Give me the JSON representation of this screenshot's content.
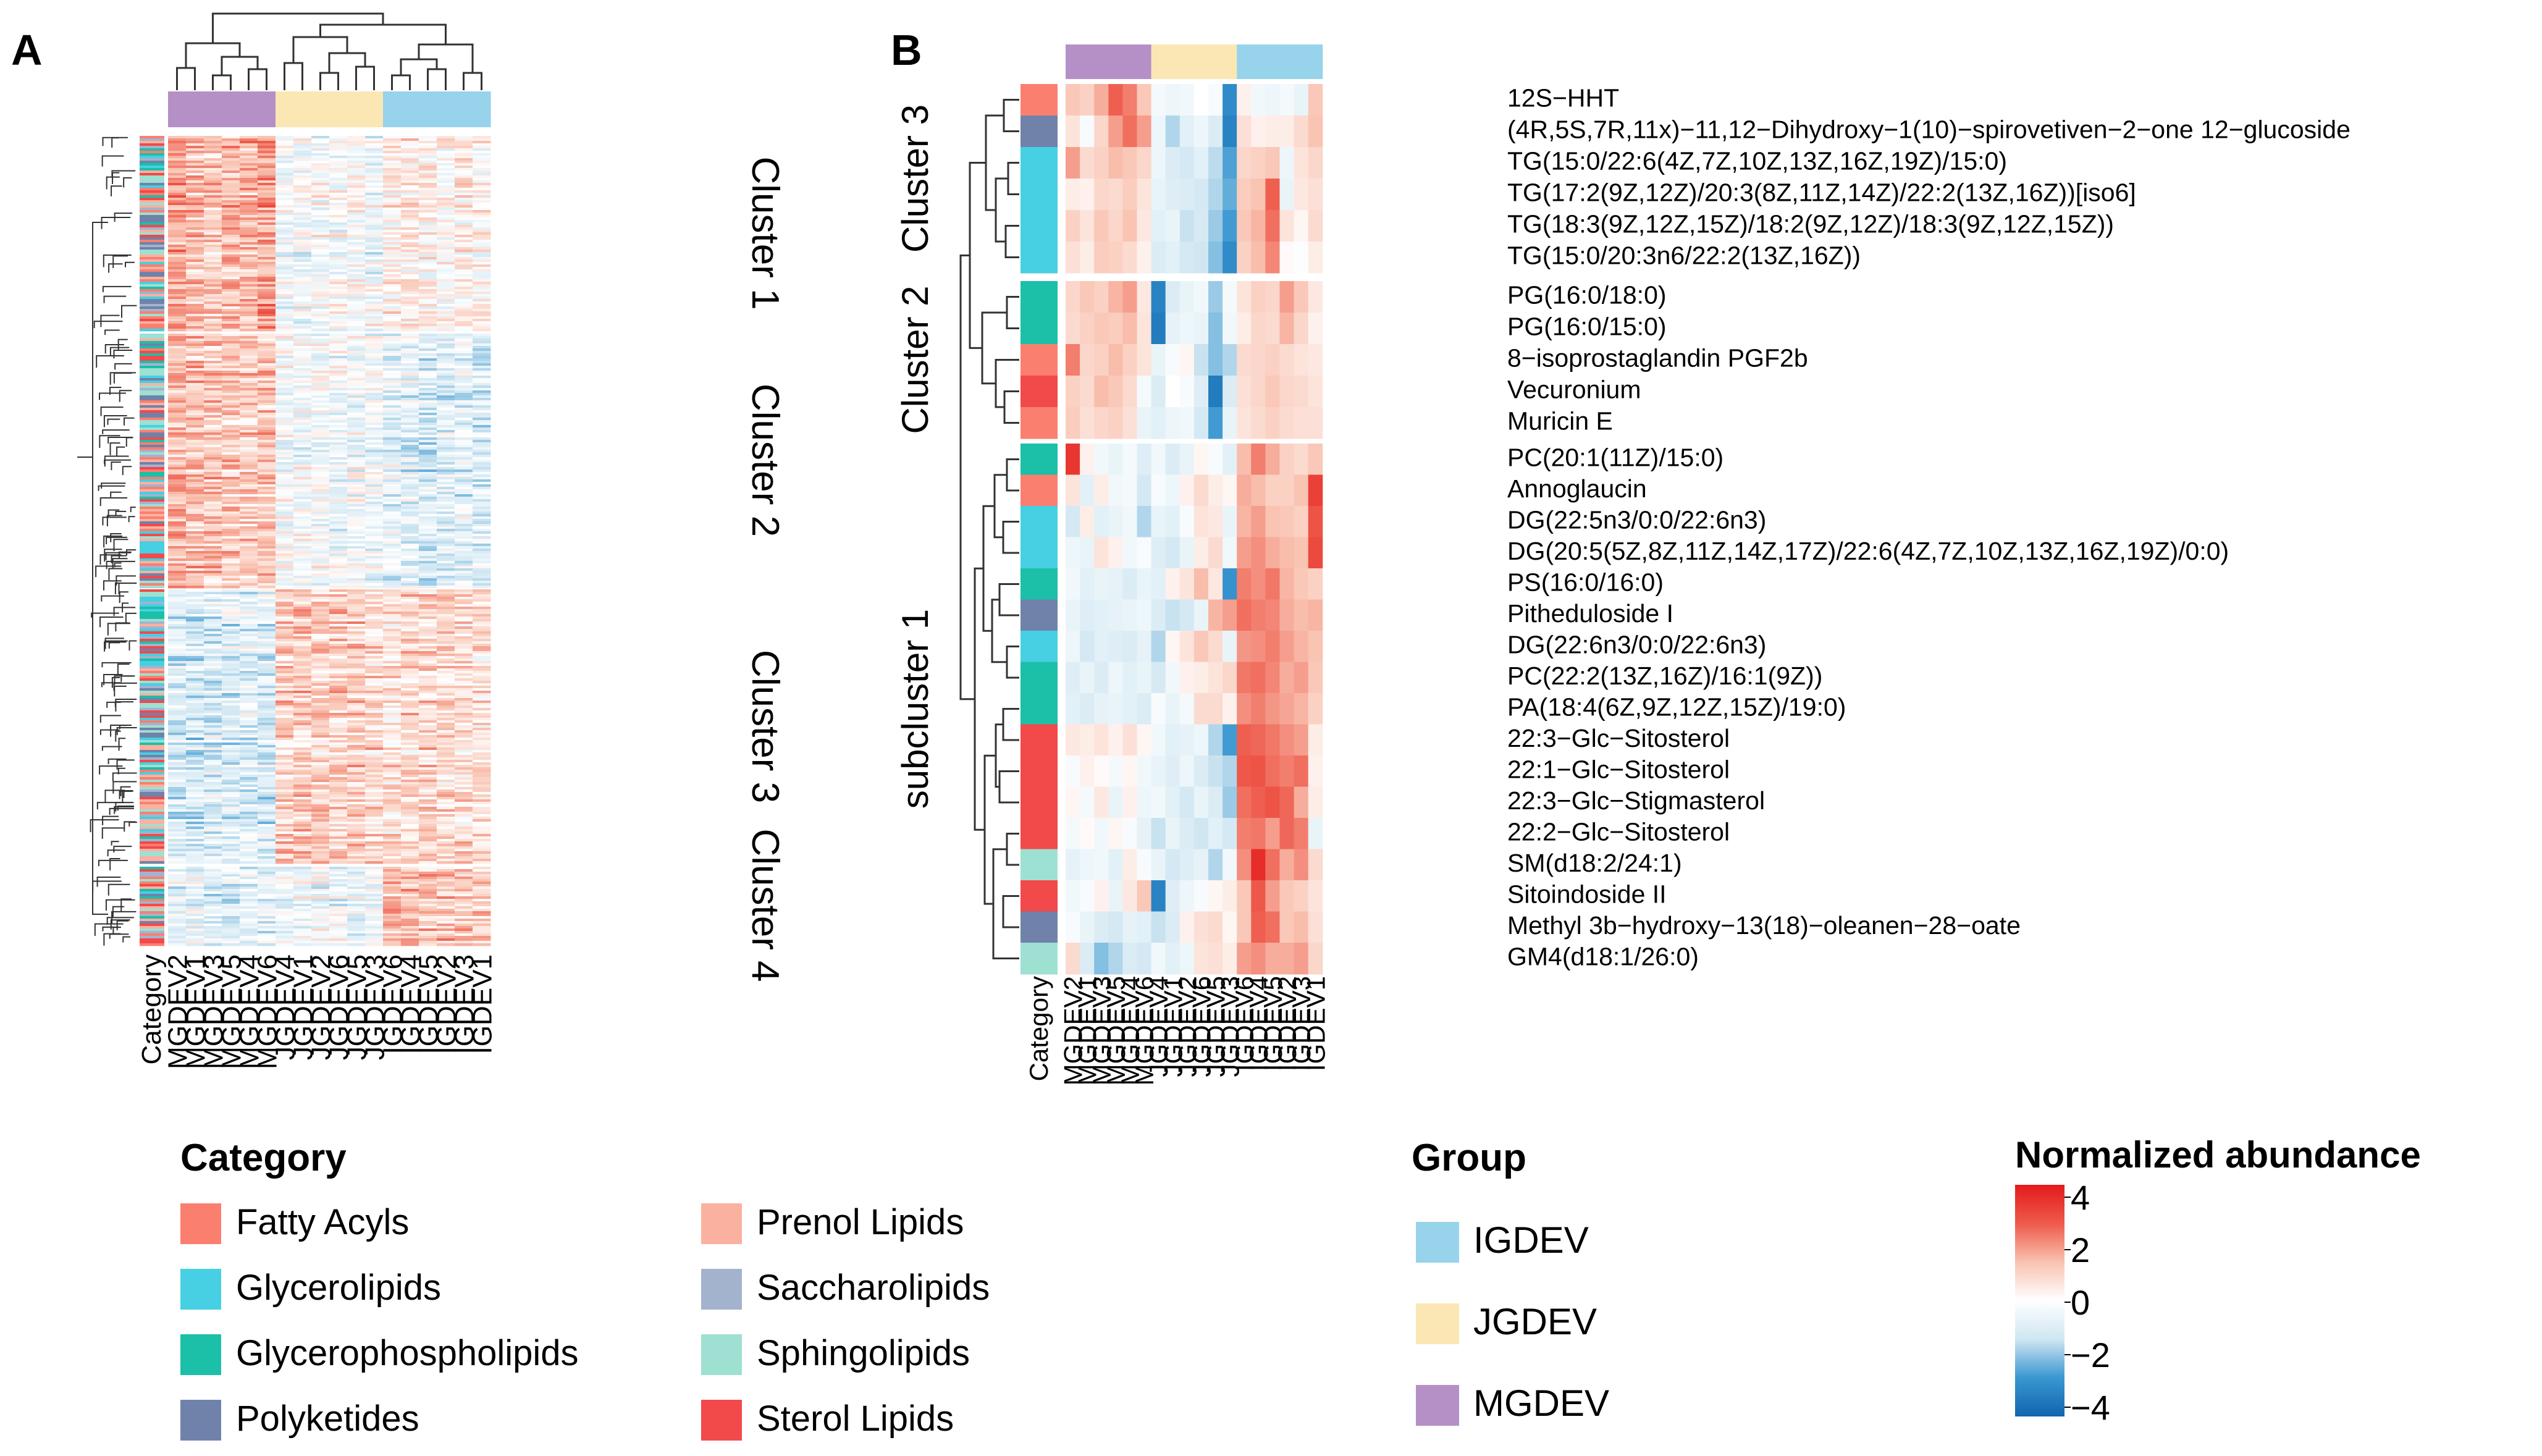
{
  "figure": {
    "panel_a_label": "A",
    "panel_b_label": "B"
  },
  "colors": {
    "groups": {
      "MGDEV": "#b590c6",
      "JGDEV": "#fbe7b3",
      "IGDEV": "#97d3ea"
    },
    "categories": {
      "Fatty Acyls": "#fa7f6f",
      "Glycerolipids": "#47cfe3",
      "Glycerophospholipids": "#1cbfa8",
      "Polyketides": "#7082aa",
      "Prenol Lipids": "#fbb19f",
      "Saccharolipids": "#a3b3cd",
      "Sphingolipids": "#9ee0d2",
      "Sterol Lipids": "#f2494a"
    },
    "scale": [
      "#1065b0",
      "#3a97d0",
      "#cfe6f2",
      "#ffffff",
      "#f9c2b0",
      "#ee5a4b",
      "#e31a1c"
    ]
  },
  "chart_data": [
    {
      "id": "panel-a",
      "type": "heatmap",
      "title": "",
      "samples": [
        "Category",
        "MGDEV2",
        "MGDEV1",
        "MGDEV3",
        "MGDEV5",
        "MGDEV4",
        "MGDEV6",
        "JGDEV4",
        "JGDEV1",
        "JGDEV2",
        "JGDEV6",
        "JGDEV5",
        "JGDEV3",
        "IGDEV6",
        "IGDEV4",
        "IGDEV5",
        "IGDEV2",
        "IGDEV3",
        "IGDEV1"
      ],
      "column_groups": [
        "MGDEV",
        "MGDEV",
        "MGDEV",
        "MGDEV",
        "MGDEV",
        "MGDEV",
        "JGDEV",
        "JGDEV",
        "JGDEV",
        "JGDEV",
        "JGDEV",
        "JGDEV",
        "IGDEV",
        "IGDEV",
        "IGDEV",
        "IGDEV",
        "IGDEV",
        "IGDEV"
      ],
      "clusters": [
        {
          "label": "Cluster 1",
          "pattern": [
            1.6,
            1.3,
            1.0,
            1.4,
            1.4,
            1.7,
            -0.3,
            -0.3,
            -0.2,
            -0.2,
            -0.1,
            -0.3,
            0.2,
            0.3,
            0.3,
            0.2,
            0.3,
            0.2
          ]
        },
        {
          "label": "Cluster 2",
          "pattern": [
            1.4,
            1.2,
            1.1,
            1.1,
            1.0,
            1.1,
            -0.2,
            -0.3,
            -0.3,
            -0.4,
            -0.3,
            -0.4,
            -0.6,
            -0.7,
            -0.9,
            -0.8,
            -0.7,
            -1.0
          ]
        },
        {
          "label": "Cluster 3",
          "pattern": [
            -0.9,
            -1.1,
            -0.9,
            -0.9,
            -0.8,
            -0.9,
            0.9,
            1.0,
            0.9,
            0.9,
            1.0,
            0.8,
            0.6,
            0.8,
            0.8,
            0.7,
            0.7,
            0.6
          ]
        },
        {
          "label": "Cluster 4",
          "pattern": [
            -0.6,
            -0.5,
            -0.7,
            -0.8,
            -0.7,
            -0.6,
            -0.3,
            -0.4,
            -0.3,
            -0.5,
            -0.6,
            -0.4,
            1.3,
            1.3,
            1.2,
            1.2,
            1.1,
            1.0
          ]
        }
      ],
      "scale_range": [
        -4,
        4
      ]
    },
    {
      "id": "panel-b",
      "type": "heatmap",
      "title": "",
      "samples": [
        "Category",
        "MGDEV2",
        "MGDEV1",
        "MGDEV3",
        "MGDEV5",
        "MGDEV4",
        "MGDEV6",
        "JGDEV4",
        "JGDEV1",
        "JGDEV2",
        "JGDEV6",
        "JGDEV5",
        "JGDEV3",
        "IGDEV6",
        "IGDEV4",
        "IGDEV5",
        "IGDEV2",
        "IGDEV3",
        "IGDEV1"
      ],
      "column_groups": [
        "MGDEV",
        "MGDEV",
        "MGDEV",
        "MGDEV",
        "MGDEV",
        "MGDEV",
        "JGDEV",
        "JGDEV",
        "JGDEV",
        "JGDEV",
        "JGDEV",
        "JGDEV",
        "IGDEV",
        "IGDEV",
        "IGDEV",
        "IGDEV",
        "IGDEV",
        "IGDEV"
      ],
      "row_groups": [
        {
          "label": "Cluster 3",
          "rows": [
            0,
            5
          ]
        },
        {
          "label": "Cluster 2",
          "rows": [
            6,
            10
          ]
        },
        {
          "label": "subcluster 1",
          "rows": [
            11,
            27
          ]
        }
      ],
      "rows": [
        {
          "name": "12S−HHT",
          "category": "Fatty Acyls",
          "values": [
            1.2,
            1.0,
            1.6,
            2.6,
            2.2,
            1.2,
            -0.3,
            -0.5,
            -0.4,
            0.0,
            -0.2,
            -3.0,
            0.3,
            -0.4,
            -0.5,
            -0.3,
            -0.6,
            1.2
          ]
        },
        {
          "name": "(4R,5S,7R,11x)−11,12−Dihydroxy−1(10)−spirovetiven−2−one 12−glucoside",
          "category": "Polyketides",
          "values": [
            0.6,
            -0.2,
            0.9,
            1.8,
            2.4,
            1.8,
            -0.5,
            -1.6,
            -0.8,
            -0.5,
            -1.0,
            -3.2,
            0.7,
            0.3,
            0.4,
            0.4,
            0.8,
            1.3
          ]
        },
        {
          "name": "TG(15:0/22:6(4Z,7Z,10Z,13Z,16Z,19Z)/15:0)",
          "category": "Glycerolipids",
          "values": [
            1.8,
            0.8,
            1.0,
            1.4,
            1.2,
            0.9,
            -0.5,
            -1.0,
            -1.2,
            -0.8,
            -1.5,
            -2.5,
            0.9,
            1.0,
            1.2,
            -0.5,
            0.6,
            0.9
          ]
        },
        {
          "name": "TG(17:2(9Z,12Z)/20:3(8Z,11Z,14Z)/22:2(13Z,16Z))[iso6]",
          "category": "Glycerolipids",
          "values": [
            0.4,
            0.3,
            0.9,
            0.8,
            1.1,
            0.6,
            -0.6,
            -0.9,
            -1.0,
            -1.2,
            -1.6,
            -2.3,
            1.1,
            1.3,
            2.6,
            -0.6,
            0.5,
            0.7
          ]
        },
        {
          "name": "TG(18:3(9Z,12Z,15Z)/18:2(9Z,12Z)/18:3(9Z,12Z,15Z))",
          "category": "Glycerolipids",
          "values": [
            1.0,
            0.6,
            1.2,
            0.9,
            1.3,
            0.5,
            -0.8,
            -0.6,
            -1.4,
            -1.1,
            -1.8,
            -2.6,
            1.2,
            1.5,
            2.4,
            0.6,
            0.2,
            0.8
          ]
        },
        {
          "name": "TG(15:0/20:3n6/22:2(13Z,16Z))",
          "category": "Glycerolipids",
          "values": [
            0.7,
            0.4,
            1.1,
            1.0,
            0.8,
            0.3,
            -1.0,
            -0.8,
            -1.2,
            -1.3,
            -2.0,
            -3.0,
            1.0,
            1.4,
            2.1,
            0.1,
            -0.1,
            0.4
          ]
        },
        {
          "name": "PG(16:0/18:0)",
          "category": "Glycerophospholipids",
          "values": [
            0.9,
            1.2,
            1.0,
            1.5,
            1.8,
            0.5,
            -3.2,
            -1.0,
            -0.6,
            -0.4,
            -1.8,
            -0.3,
            0.6,
            1.0,
            0.9,
            1.8,
            1.2,
            0.5
          ]
        },
        {
          "name": "PG(16:0/15:0)",
          "category": "Glycerophospholipids",
          "values": [
            0.8,
            1.0,
            1.2,
            1.1,
            1.4,
            0.6,
            -3.4,
            -0.7,
            -0.5,
            -0.6,
            -2.0,
            -0.4,
            0.4,
            0.9,
            0.8,
            1.5,
            0.9,
            0.3
          ]
        },
        {
          "name": "8−isoprostaglandin PGF2b",
          "category": "Fatty Acyls",
          "values": [
            2.2,
            0.9,
            1.0,
            1.4,
            1.0,
            0.6,
            -0.6,
            -0.2,
            0.2,
            -1.4,
            -2.0,
            -1.6,
            0.8,
            0.9,
            1.0,
            0.8,
            0.6,
            0.5
          ]
        },
        {
          "name": "Vecuronium",
          "category": "Sterol Lipids",
          "values": [
            1.0,
            0.8,
            1.4,
            1.2,
            0.8,
            -0.3,
            -1.0,
            0.0,
            -0.2,
            -0.9,
            -3.4,
            -1.0,
            0.7,
            0.9,
            1.2,
            0.9,
            0.8,
            0.6
          ]
        },
        {
          "name": "Muricin E",
          "category": "Fatty Acyls",
          "values": [
            1.1,
            0.7,
            0.9,
            1.0,
            0.7,
            -0.6,
            -0.8,
            -0.5,
            -0.4,
            -1.2,
            -2.6,
            -0.6,
            0.6,
            0.8,
            1.0,
            0.8,
            0.7,
            0.7
          ]
        },
        {
          "name": "PC(20:1(11Z)/15:0)",
          "category": "Glycerophospholipids",
          "values": [
            3.4,
            0.3,
            -0.4,
            -0.6,
            -0.3,
            -0.9,
            -0.4,
            -1.0,
            -0.6,
            0.2,
            -0.2,
            -0.8,
            1.4,
            2.2,
            1.6,
            1.0,
            0.8,
            1.2
          ]
        },
        {
          "name": "Annoglaucin",
          "category": "Fatty Acyls",
          "values": [
            0.6,
            -0.8,
            0.4,
            -0.4,
            -0.3,
            -1.2,
            -0.2,
            -0.5,
            0.3,
            0.8,
            0.4,
            0.2,
            1.6,
            1.4,
            1.0,
            1.0,
            1.3,
            3.2
          ]
        },
        {
          "name": "DG(22:5n3/0:0/22:6n3)",
          "category": "Glycerolipids",
          "values": [
            -1.2,
            0.4,
            -0.8,
            -0.6,
            -0.4,
            -1.6,
            -0.6,
            -0.8,
            -0.2,
            0.6,
            0.5,
            -0.6,
            1.5,
            1.8,
            1.3,
            1.2,
            1.0,
            2.8
          ]
        },
        {
          "name": "DG(20:5(5Z,8Z,11Z,14Z,17Z)/22:6(4Z,7Z,10Z,13Z,16Z,19Z)/0:0)",
          "category": "Glycerolipids",
          "values": [
            -0.5,
            -0.6,
            0.6,
            0.3,
            -0.4,
            -0.2,
            -0.9,
            -1.2,
            -0.6,
            0.4,
            0.8,
            -0.4,
            1.8,
            2.0,
            1.6,
            1.4,
            1.3,
            3.0
          ]
        },
        {
          "name": "PS(16:0/16:0)",
          "category": "Glycerophospholipids",
          "values": [
            -0.4,
            -0.8,
            -0.6,
            -0.7,
            -1.0,
            -0.6,
            -0.8,
            0.3,
            0.6,
            1.4,
            0.5,
            -2.8,
            2.2,
            2.0,
            2.3,
            1.5,
            1.2,
            1.0
          ]
        },
        {
          "name": "Pitheduloside I",
          "category": "Polyketides",
          "values": [
            -0.6,
            -0.9,
            -0.8,
            -0.7,
            -0.6,
            -0.5,
            -1.0,
            -1.4,
            -1.2,
            -0.6,
            1.5,
            1.8,
            2.4,
            2.2,
            2.1,
            1.6,
            1.4,
            1.5
          ]
        },
        {
          "name": "DG(22:6n3/0:0/22:6n3)",
          "category": "Glycerolipids",
          "values": [
            -0.5,
            -1.2,
            -0.8,
            -0.9,
            -1.0,
            -0.7,
            -1.6,
            0.2,
            0.6,
            1.2,
            0.8,
            -0.6,
            1.9,
            2.0,
            2.2,
            1.8,
            1.5,
            1.3
          ]
        },
        {
          "name": "PC(22:2(13Z,16Z)/16:1(9Z))",
          "category": "Glycerophospholipids",
          "values": [
            -0.9,
            -0.6,
            -1.0,
            -0.5,
            -0.8,
            -0.6,
            -1.1,
            -0.4,
            0.3,
            0.4,
            0.6,
            0.9,
            2.3,
            2.4,
            2.1,
            1.6,
            1.8,
            1.2
          ]
        },
        {
          "name": "PA(18:4(6Z,9Z,12Z,15Z)/19:0)",
          "category": "Glycerophospholipids",
          "values": [
            -0.8,
            -1.0,
            -0.7,
            -0.6,
            -0.8,
            -1.0,
            -0.2,
            -0.6,
            -0.3,
            0.8,
            0.8,
            0.3,
            2.0,
            2.2,
            1.9,
            1.7,
            1.5,
            1.0
          ]
        },
        {
          "name": "22:3−Glc−Sitosterol",
          "category": "Sterol Lipids",
          "values": [
            0.5,
            0.4,
            0.6,
            0.3,
            0.7,
            0.2,
            -0.4,
            -0.8,
            -0.7,
            -0.5,
            -1.6,
            -2.6,
            2.6,
            2.5,
            2.3,
            2.0,
            1.8,
            0.4
          ]
        },
        {
          "name": "22:1−Glc−Sitosterol",
          "category": "Sterol Lipids",
          "values": [
            -0.2,
            0.3,
            0.1,
            -0.3,
            0.2,
            -0.4,
            -0.6,
            -0.9,
            -0.5,
            -1.0,
            -1.4,
            -1.6,
            2.7,
            2.8,
            2.4,
            2.2,
            2.4,
            0.3
          ]
        },
        {
          "name": "22:3−Glc−Stigmasterol",
          "category": "Sterol Lipids",
          "values": [
            0.2,
            -0.3,
            0.5,
            -0.6,
            0.3,
            -0.5,
            -0.4,
            -0.8,
            -1.2,
            -0.6,
            -1.0,
            -1.8,
            2.4,
            2.6,
            2.8,
            2.5,
            1.6,
            0.4
          ]
        },
        {
          "name": "22:2−Glc−Sitosterol",
          "category": "Sterol Lipids",
          "values": [
            -0.3,
            0.1,
            -0.4,
            0.2,
            -0.2,
            -0.7,
            -1.4,
            -0.6,
            -1.0,
            -1.3,
            -0.8,
            -1.2,
            2.2,
            2.3,
            1.8,
            2.5,
            2.2,
            -0.6
          ]
        },
        {
          "name": "SM(d18:2/24:1)",
          "category": "Sphingolipids",
          "values": [
            -0.7,
            -0.5,
            -0.4,
            -0.8,
            0.4,
            -0.2,
            -0.6,
            -1.2,
            -0.9,
            -0.7,
            -1.6,
            -0.4,
            2.0,
            3.6,
            2.4,
            1.6,
            2.0,
            0.8
          ]
        },
        {
          "name": "Sitoindoside II",
          "category": "Sterol Lipids",
          "values": [
            -0.4,
            -0.2,
            0.3,
            -0.6,
            0.5,
            1.2,
            -3.2,
            -0.9,
            -0.5,
            -0.2,
            0.2,
            0.4,
            1.2,
            2.7,
            1.8,
            1.2,
            1.0,
            0.6
          ]
        },
        {
          "name": "Methyl 3b−hydroxy−13(18)−oleanen−28−oate",
          "category": "Polyketides",
          "values": [
            -0.2,
            -0.6,
            -1.0,
            -1.2,
            -0.7,
            -0.8,
            -1.4,
            -1.0,
            0.3,
            0.7,
            0.8,
            0.2,
            1.2,
            2.6,
            2.4,
            1.2,
            1.4,
            0.7
          ]
        },
        {
          "name": "GM4(d18:1/26:0)",
          "category": "Sphingolipids",
          "values": [
            0.8,
            -1.0,
            -2.0,
            -1.6,
            -1.0,
            -1.2,
            -0.4,
            -0.8,
            -0.5,
            0.6,
            0.7,
            0.4,
            1.8,
            2.0,
            1.6,
            1.6,
            1.8,
            0.9
          ]
        }
      ],
      "scale_range": [
        -4,
        4
      ]
    }
  ],
  "legend": {
    "category": {
      "title": "Category",
      "left_items": [
        "Fatty Acyls",
        "Glycerolipids",
        "Glycerophospholipids",
        "Polyketides"
      ],
      "right_items": [
        "Prenol Lipids",
        "Saccharolipids",
        "Sphingolipids",
        "Sterol Lipids"
      ]
    },
    "group": {
      "title": "Group",
      "items": [
        "IGDEV",
        "JGDEV",
        "MGDEV"
      ]
    },
    "abundance": {
      "title": "Normalized abundance",
      "ticks": [
        "4",
        "2",
        "0",
        "−2",
        "−4"
      ]
    }
  }
}
